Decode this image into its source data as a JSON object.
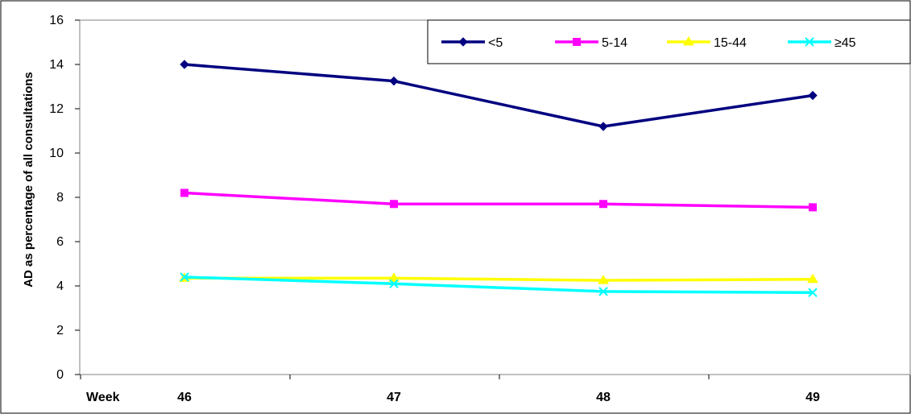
{
  "chart_data": {
    "type": "line",
    "xlabel": "Week",
    "ylabel": "AD as percentage of all consultations",
    "categories": [
      "46",
      "47",
      "48",
      "49"
    ],
    "ylim": [
      0,
      16
    ],
    "yticks": [
      "0",
      "2",
      "4",
      "6",
      "8",
      "10",
      "12",
      "14",
      "16"
    ],
    "grid": false,
    "legend_position": "top-right",
    "series": [
      {
        "name": "<5",
        "values": [
          14.0,
          13.25,
          11.2,
          12.6
        ],
        "color": "#000080",
        "marker": "diamond"
      },
      {
        "name": "5-14",
        "values": [
          8.2,
          7.7,
          7.7,
          7.55
        ],
        "color": "#ff00ff",
        "marker": "square"
      },
      {
        "name": "15-44",
        "values": [
          4.35,
          4.35,
          4.25,
          4.3
        ],
        "color": "#ffff00",
        "marker": "triangle"
      },
      {
        "name": "≥45",
        "values": [
          4.4,
          4.1,
          3.75,
          3.7
        ],
        "color": "#00ffff",
        "marker": "x"
      }
    ]
  }
}
